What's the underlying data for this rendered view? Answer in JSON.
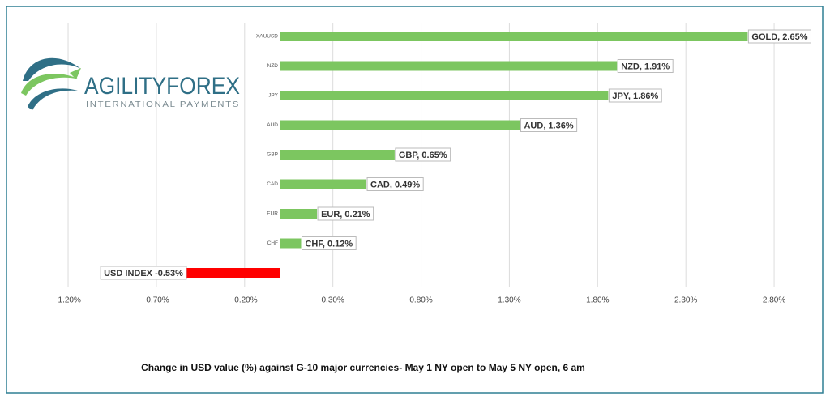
{
  "logo": {
    "name": "AGILITYFOREX",
    "tagline": "INTERNATIONAL PAYMENTS"
  },
  "chart_data": {
    "type": "hbar",
    "title": "Change in  USD value (%)  against  G-10 major currencies- May 1 NY open to May 5 NY open, 6 am",
    "categories": [
      "XAUUSD",
      "NZD",
      "JPY",
      "AUD",
      "GBP",
      "CAD",
      "EUR",
      "CHF",
      null
    ],
    "values": [
      2.65,
      1.91,
      1.86,
      1.36,
      0.65,
      0.49,
      0.21,
      0.12,
      -0.53
    ],
    "value_labels": [
      "GOLD, 2.65%",
      "NZD, 1.91%",
      "JPY, 1.86%",
      "AUD, 1.36%",
      "GBP, 0.65%",
      "CAD, 0.49%",
      "EUR, 0.21%",
      "CHF, 0.12%",
      "USD INDEX -0.53%"
    ],
    "colors": [
      "#7cc660",
      "#7cc660",
      "#7cc660",
      "#7cc660",
      "#7cc660",
      "#7cc660",
      "#7cc660",
      "#7cc660",
      "#ff0000"
    ],
    "xlim": [
      -1.45,
      3.05
    ],
    "xticks": [
      {
        "value": -1.2,
        "label": "-1.20%"
      },
      {
        "value": -0.7,
        "label": "-0.70%"
      },
      {
        "value": -0.2,
        "label": "-0.20%"
      },
      {
        "value": 0.3,
        "label": "0.30%"
      },
      {
        "value": 0.8,
        "label": "0.80%"
      },
      {
        "value": 1.3,
        "label": "1.30%"
      },
      {
        "value": 1.8,
        "label": "1.80%"
      },
      {
        "value": 2.3,
        "label": "2.30%"
      },
      {
        "value": 2.8,
        "label": "2.80%"
      }
    ],
    "grid": true
  }
}
